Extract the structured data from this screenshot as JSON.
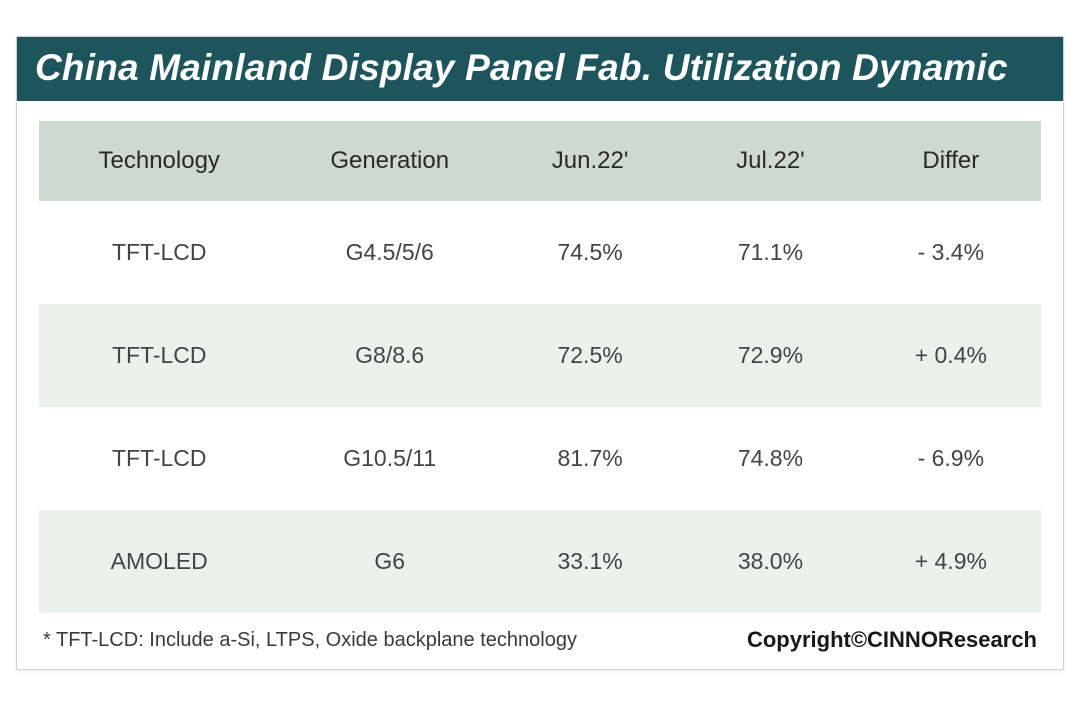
{
  "title": "China Mainland Display Panel Fab. Utilization Dynamic",
  "colors": {
    "title_bar_bg": "#1e545c",
    "title_text": "#ffffff",
    "header_row_bg": "#ced9d1",
    "row_alt_bg": "#edf1ee",
    "row_bg": "#ffffff",
    "text_header": "#2a2a2a",
    "text_cell": "#444444",
    "border": "#d0d0d0"
  },
  "table": {
    "type": "table",
    "columns": [
      "Technology",
      "Generation",
      "Jun.22'",
      "Jul.22'",
      "Differ"
    ],
    "column_widths_pct": [
      24,
      22,
      18,
      18,
      18
    ],
    "header_fontsize": 24,
    "cell_fontsize": 23,
    "rows": [
      [
        "TFT-LCD",
        "G4.5/5/6",
        "74.5%",
        "71.1%",
        "- 3.4%"
      ],
      [
        "TFT-LCD",
        "G8/8.6",
        "72.5%",
        "72.9%",
        "+ 0.4%"
      ],
      [
        "TFT-LCD",
        "G10.5/11",
        "81.7%",
        "74.8%",
        "- 6.9%"
      ],
      [
        "AMOLED",
        "G6",
        "33.1%",
        "38.0%",
        "+ 4.9%"
      ]
    ],
    "row_bg_colors": [
      "#ffffff",
      "#edf1ee",
      "#ffffff",
      "#edf1ee"
    ]
  },
  "footnote": "* TFT-LCD: Include a-Si, LTPS, Oxide backplane technology",
  "copyright": "Copyright©CINNOResearch"
}
